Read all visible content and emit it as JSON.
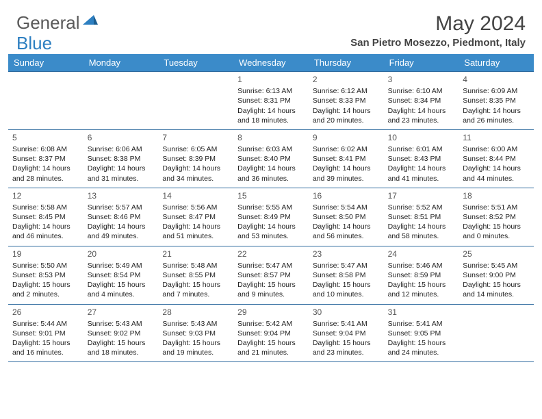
{
  "logo": {
    "general": "General",
    "blue": "Blue"
  },
  "title": "May 2024",
  "location": "San Pietro Mosezzo, Piedmont, Italy",
  "day_names": [
    "Sunday",
    "Monday",
    "Tuesday",
    "Wednesday",
    "Thursday",
    "Friday",
    "Saturday"
  ],
  "colors": {
    "header_bg": "#3b8bc9",
    "header_text": "#ffffff",
    "border": "#2d6a9e",
    "logo_gray": "#5a5a5a",
    "logo_blue": "#2d7fc1",
    "text": "#222222",
    "daynum": "#555555",
    "background": "#ffffff"
  },
  "days": {
    "1": {
      "sunrise": "6:13 AM",
      "sunset": "8:31 PM",
      "daylight": "14 hours and 18 minutes."
    },
    "2": {
      "sunrise": "6:12 AM",
      "sunset": "8:33 PM",
      "daylight": "14 hours and 20 minutes."
    },
    "3": {
      "sunrise": "6:10 AM",
      "sunset": "8:34 PM",
      "daylight": "14 hours and 23 minutes."
    },
    "4": {
      "sunrise": "6:09 AM",
      "sunset": "8:35 PM",
      "daylight": "14 hours and 26 minutes."
    },
    "5": {
      "sunrise": "6:08 AM",
      "sunset": "8:37 PM",
      "daylight": "14 hours and 28 minutes."
    },
    "6": {
      "sunrise": "6:06 AM",
      "sunset": "8:38 PM",
      "daylight": "14 hours and 31 minutes."
    },
    "7": {
      "sunrise": "6:05 AM",
      "sunset": "8:39 PM",
      "daylight": "14 hours and 34 minutes."
    },
    "8": {
      "sunrise": "6:03 AM",
      "sunset": "8:40 PM",
      "daylight": "14 hours and 36 minutes."
    },
    "9": {
      "sunrise": "6:02 AM",
      "sunset": "8:41 PM",
      "daylight": "14 hours and 39 minutes."
    },
    "10": {
      "sunrise": "6:01 AM",
      "sunset": "8:43 PM",
      "daylight": "14 hours and 41 minutes."
    },
    "11": {
      "sunrise": "6:00 AM",
      "sunset": "8:44 PM",
      "daylight": "14 hours and 44 minutes."
    },
    "12": {
      "sunrise": "5:58 AM",
      "sunset": "8:45 PM",
      "daylight": "14 hours and 46 minutes."
    },
    "13": {
      "sunrise": "5:57 AM",
      "sunset": "8:46 PM",
      "daylight": "14 hours and 49 minutes."
    },
    "14": {
      "sunrise": "5:56 AM",
      "sunset": "8:47 PM",
      "daylight": "14 hours and 51 minutes."
    },
    "15": {
      "sunrise": "5:55 AM",
      "sunset": "8:49 PM",
      "daylight": "14 hours and 53 minutes."
    },
    "16": {
      "sunrise": "5:54 AM",
      "sunset": "8:50 PM",
      "daylight": "14 hours and 56 minutes."
    },
    "17": {
      "sunrise": "5:52 AM",
      "sunset": "8:51 PM",
      "daylight": "14 hours and 58 minutes."
    },
    "18": {
      "sunrise": "5:51 AM",
      "sunset": "8:52 PM",
      "daylight": "15 hours and 0 minutes."
    },
    "19": {
      "sunrise": "5:50 AM",
      "sunset": "8:53 PM",
      "daylight": "15 hours and 2 minutes."
    },
    "20": {
      "sunrise": "5:49 AM",
      "sunset": "8:54 PM",
      "daylight": "15 hours and 4 minutes."
    },
    "21": {
      "sunrise": "5:48 AM",
      "sunset": "8:55 PM",
      "daylight": "15 hours and 7 minutes."
    },
    "22": {
      "sunrise": "5:47 AM",
      "sunset": "8:57 PM",
      "daylight": "15 hours and 9 minutes."
    },
    "23": {
      "sunrise": "5:47 AM",
      "sunset": "8:58 PM",
      "daylight": "15 hours and 10 minutes."
    },
    "24": {
      "sunrise": "5:46 AM",
      "sunset": "8:59 PM",
      "daylight": "15 hours and 12 minutes."
    },
    "25": {
      "sunrise": "5:45 AM",
      "sunset": "9:00 PM",
      "daylight": "15 hours and 14 minutes."
    },
    "26": {
      "sunrise": "5:44 AM",
      "sunset": "9:01 PM",
      "daylight": "15 hours and 16 minutes."
    },
    "27": {
      "sunrise": "5:43 AM",
      "sunset": "9:02 PM",
      "daylight": "15 hours and 18 minutes."
    },
    "28": {
      "sunrise": "5:43 AM",
      "sunset": "9:03 PM",
      "daylight": "15 hours and 19 minutes."
    },
    "29": {
      "sunrise": "5:42 AM",
      "sunset": "9:04 PM",
      "daylight": "15 hours and 21 minutes."
    },
    "30": {
      "sunrise": "5:41 AM",
      "sunset": "9:04 PM",
      "daylight": "15 hours and 23 minutes."
    },
    "31": {
      "sunrise": "5:41 AM",
      "sunset": "9:05 PM",
      "daylight": "15 hours and 24 minutes."
    }
  },
  "layout": {
    "weeks": [
      [
        0,
        0,
        0,
        1,
        2,
        3,
        4
      ],
      [
        5,
        6,
        7,
        8,
        9,
        10,
        11
      ],
      [
        12,
        13,
        14,
        15,
        16,
        17,
        18
      ],
      [
        19,
        20,
        21,
        22,
        23,
        24,
        25
      ],
      [
        26,
        27,
        28,
        29,
        30,
        31,
        0
      ]
    ]
  },
  "labels": {
    "sunrise": "Sunrise: ",
    "sunset": "Sunset: ",
    "daylight": "Daylight: "
  }
}
